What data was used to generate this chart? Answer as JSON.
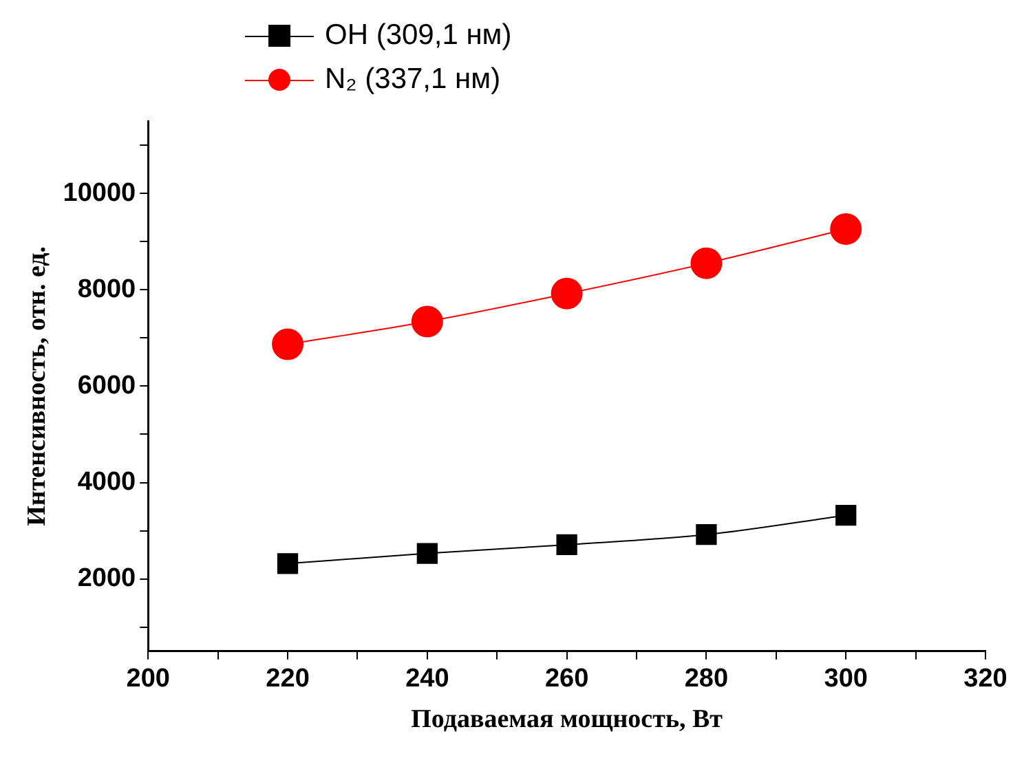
{
  "chart_data": {
    "type": "line",
    "xlabel": "Подаваемая мощность, Вт",
    "ylabel": "Интенсивность, отн. ед.",
    "x": [
      220,
      240,
      260,
      280,
      300
    ],
    "series": [
      {
        "name": "OH (309,1 нм)",
        "color": "#000000",
        "marker": "square",
        "values": [
          2320,
          2530,
          2710,
          2920,
          3320
        ]
      },
      {
        "name": "N₂ (337,1 нм)",
        "color": "#ff0000",
        "marker": "circle",
        "values": [
          6870,
          7340,
          7920,
          8550,
          9260
        ]
      }
    ],
    "xlim": [
      200,
      320
    ],
    "xticks": [
      200,
      {
        "value": 210,
        "label": null
      },
      220,
      {
        "value": 230,
        "label": null
      },
      240,
      {
        "value": 250,
        "label": null
      },
      260,
      {
        "value": 270,
        "label": null
      },
      280,
      {
        "value": 290,
        "label": null
      },
      300,
      {
        "value": 310,
        "label": null
      },
      320
    ],
    "ylim": [
      500,
      11500
    ],
    "yticks": [
      {
        "value": 1000,
        "label": null
      },
      2000,
      {
        "value": 3000,
        "label": null
      },
      4000,
      {
        "value": 5000,
        "label": null
      },
      6000,
      {
        "value": 7000,
        "label": null
      },
      8000,
      {
        "value": 9000,
        "label": null
      },
      10000,
      {
        "value": 11000,
        "label": null
      }
    ],
    "grid": false,
    "legend": "top left"
  }
}
